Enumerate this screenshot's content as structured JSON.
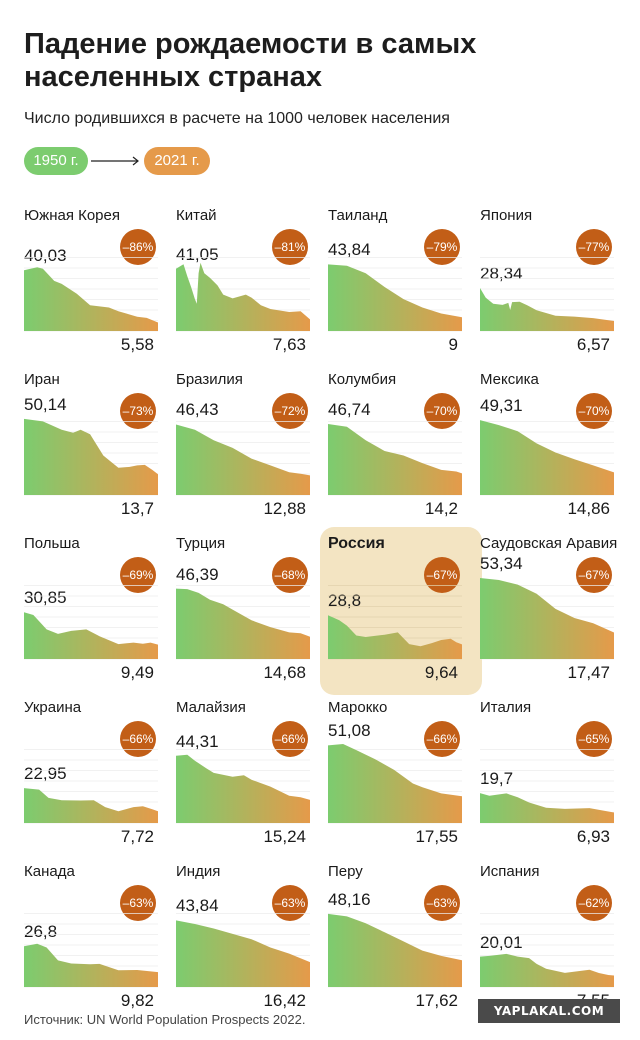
{
  "title": "Падение рождаемости в самых населенных странах",
  "subtitle": "Число родившихся в расчете на 1000 человек населения",
  "legend": {
    "start_label": "1950 г.",
    "end_label": "2021 г."
  },
  "source": "Источник: UN World Population Prospects 2022.",
  "watermark": "YAPLAKAL.COM",
  "colors": {
    "start_green": "#7ccc6f",
    "end_orange": "#e59a4a",
    "badge_brown": "#c25e17",
    "highlight_bg": "#f3e4c2"
  },
  "chart_data": {
    "type": "area",
    "x_range": [
      1950,
      2021
    ],
    "grid": true,
    "y_max_per_panel": 54,
    "panels": [
      {
        "country": "Южная Корея",
        "start": "40,03",
        "end": "5,58",
        "change": "–86%",
        "start_value": 40.03,
        "end_value": 5.58,
        "profile": [
          [
            1950,
            40.0
          ],
          [
            1957,
            42.0
          ],
          [
            1960,
            41.0
          ],
          [
            1966,
            33.0
          ],
          [
            1970,
            31.0
          ],
          [
            1978,
            24.5
          ],
          [
            1985,
            17.0
          ],
          [
            1995,
            15.5
          ],
          [
            2000,
            13.0
          ],
          [
            2010,
            9.4
          ],
          [
            2015,
            8.6
          ],
          [
            2021,
            5.58
          ]
        ]
      },
      {
        "country": "Китай",
        "start": "41,05",
        "end": "7,63",
        "change": "–81%",
        "start_value": 41.05,
        "end_value": 7.63,
        "profile": [
          [
            1950,
            41.05
          ],
          [
            1954,
            44.0
          ],
          [
            1956,
            36.0
          ],
          [
            1958,
            29.0
          ],
          [
            1960,
            21.0
          ],
          [
            1961,
            18.0
          ],
          [
            1962,
            38.0
          ],
          [
            1963,
            45.0
          ],
          [
            1965,
            38.0
          ],
          [
            1968,
            35.0
          ],
          [
            1972,
            30.0
          ],
          [
            1975,
            24.0
          ],
          [
            1980,
            21.5
          ],
          [
            1987,
            24.0
          ],
          [
            1990,
            22.0
          ],
          [
            1995,
            17.0
          ],
          [
            2000,
            14.5
          ],
          [
            2010,
            12.5
          ],
          [
            2016,
            13.0
          ],
          [
            2021,
            7.63
          ]
        ]
      },
      {
        "country": "Таиланд",
        "start": "43,84",
        "end": "9",
        "change": "–79%",
        "start_value": 43.84,
        "end_value": 9.0,
        "profile": [
          [
            1950,
            43.84
          ],
          [
            1960,
            43.0
          ],
          [
            1970,
            38.0
          ],
          [
            1980,
            29.0
          ],
          [
            1990,
            21.0
          ],
          [
            2000,
            15.5
          ],
          [
            2010,
            11.5
          ],
          [
            2021,
            9.0
          ]
        ]
      },
      {
        "country": "Япония",
        "start": "28,34",
        "end": "6,57",
        "change": "–77%",
        "start_value": 28.34,
        "end_value": 6.57,
        "profile": [
          [
            1950,
            28.34
          ],
          [
            1953,
            22.0
          ],
          [
            1957,
            18.0
          ],
          [
            1962,
            17.2
          ],
          [
            1965,
            18.5
          ],
          [
            1966,
            13.8
          ],
          [
            1967,
            19.0
          ],
          [
            1971,
            19.2
          ],
          [
            1975,
            17.0
          ],
          [
            1980,
            13.6
          ],
          [
            1990,
            10.0
          ],
          [
            2000,
            9.5
          ],
          [
            2010,
            8.5
          ],
          [
            2021,
            6.57
          ]
        ]
      },
      {
        "country": "Иран",
        "start": "50,14",
        "end": "13,7",
        "change": "–73%",
        "start_value": 50.14,
        "end_value": 13.7,
        "profile": [
          [
            1950,
            50.14
          ],
          [
            1960,
            48.5
          ],
          [
            1970,
            43.0
          ],
          [
            1976,
            41.0
          ],
          [
            1980,
            43.0
          ],
          [
            1985,
            40.0
          ],
          [
            1992,
            26.0
          ],
          [
            1996,
            22.0
          ],
          [
            2000,
            18.0
          ],
          [
            2006,
            18.5
          ],
          [
            2010,
            19.5
          ],
          [
            2014,
            19.8
          ],
          [
            2018,
            16.5
          ],
          [
            2021,
            13.7
          ]
        ]
      },
      {
        "country": "Бразилия",
        "start": "46,43",
        "end": "12,88",
        "change": "–72%",
        "start_value": 46.43,
        "end_value": 12.88,
        "profile": [
          [
            1950,
            46.43
          ],
          [
            1960,
            43.0
          ],
          [
            1970,
            36.0
          ],
          [
            1980,
            31.0
          ],
          [
            1990,
            24.0
          ],
          [
            2000,
            19.5
          ],
          [
            2010,
            15.0
          ],
          [
            2016,
            14.0
          ],
          [
            2021,
            12.88
          ]
        ]
      },
      {
        "country": "Колумбия",
        "start": "46,74",
        "end": "14,2",
        "change": "–70%",
        "start_value": 46.74,
        "end_value": 14.2,
        "profile": [
          [
            1950,
            46.74
          ],
          [
            1960,
            45.0
          ],
          [
            1970,
            36.0
          ],
          [
            1980,
            29.0
          ],
          [
            1990,
            26.0
          ],
          [
            2000,
            21.0
          ],
          [
            2010,
            16.5
          ],
          [
            2018,
            15.5
          ],
          [
            2021,
            14.2
          ]
        ]
      },
      {
        "country": "Мексика",
        "start": "49,31",
        "end": "14,86",
        "change": "–70%",
        "start_value": 49.31,
        "end_value": 14.86,
        "profile": [
          [
            1950,
            49.31
          ],
          [
            1960,
            46.0
          ],
          [
            1970,
            42.0
          ],
          [
            1980,
            34.0
          ],
          [
            1990,
            28.0
          ],
          [
            2000,
            23.5
          ],
          [
            2010,
            19.5
          ],
          [
            2021,
            14.86
          ]
        ]
      },
      {
        "country": "Польша",
        "start": "30,85",
        "end": "9,49",
        "change": "–69%",
        "start_value": 30.85,
        "end_value": 9.49,
        "profile": [
          [
            1950,
            30.85
          ],
          [
            1955,
            29.0
          ],
          [
            1962,
            19.5
          ],
          [
            1968,
            16.5
          ],
          [
            1975,
            18.5
          ],
          [
            1983,
            19.5
          ],
          [
            1990,
            15.0
          ],
          [
            2000,
            9.8
          ],
          [
            2008,
            10.8
          ],
          [
            2013,
            10.0
          ],
          [
            2017,
            10.8
          ],
          [
            2021,
            9.49
          ]
        ]
      },
      {
        "country": "Турция",
        "start": "46,39",
        "end": "14,68",
        "change": "–68%",
        "start_value": 46.39,
        "end_value": 14.68,
        "profile": [
          [
            1950,
            46.39
          ],
          [
            1956,
            46.0
          ],
          [
            1962,
            43.5
          ],
          [
            1968,
            39.0
          ],
          [
            1975,
            36.0
          ],
          [
            1980,
            32.5
          ],
          [
            1990,
            25.5
          ],
          [
            2000,
            21.0
          ],
          [
            2010,
            17.5
          ],
          [
            2016,
            17.0
          ],
          [
            2021,
            14.68
          ]
        ]
      },
      {
        "country": "Россия",
        "start": "28,8",
        "end": "9,64",
        "change": "–67%",
        "start_value": 28.8,
        "end_value": 9.64,
        "highlighted": true,
        "profile": [
          [
            1950,
            28.8
          ],
          [
            1956,
            25.5
          ],
          [
            1960,
            22.0
          ],
          [
            1965,
            15.5
          ],
          [
            1970,
            14.5
          ],
          [
            1980,
            16.0
          ],
          [
            1987,
            17.5
          ],
          [
            1993,
            9.8
          ],
          [
            1999,
            8.4
          ],
          [
            2005,
            10.5
          ],
          [
            2010,
            12.5
          ],
          [
            2015,
            13.3
          ],
          [
            2018,
            11.0
          ],
          [
            2021,
            9.64
          ]
        ]
      },
      {
        "country": "Саудовская Аравия",
        "start": "53,34",
        "end": "17,47",
        "change": "–67%",
        "start_value": 53.34,
        "end_value": 17.47,
        "profile": [
          [
            1950,
            53.34
          ],
          [
            1960,
            52.0
          ],
          [
            1970,
            49.0
          ],
          [
            1980,
            43.0
          ],
          [
            1990,
            33.0
          ],
          [
            2000,
            27.0
          ],
          [
            2010,
            23.5
          ],
          [
            2021,
            17.47
          ]
        ]
      },
      {
        "country": "Украина",
        "start": "22,95",
        "end": "7,72",
        "change": "–66%",
        "start_value": 22.95,
        "end_value": 7.72,
        "profile": [
          [
            1950,
            22.95
          ],
          [
            1958,
            22.0
          ],
          [
            1963,
            16.5
          ],
          [
            1970,
            15.0
          ],
          [
            1980,
            14.8
          ],
          [
            1987,
            15.0
          ],
          [
            1993,
            10.5
          ],
          [
            2000,
            7.8
          ],
          [
            2008,
            10.5
          ],
          [
            2013,
            11.0
          ],
          [
            2018,
            9.0
          ],
          [
            2021,
            7.72
          ]
        ]
      },
      {
        "country": "Малайзия",
        "start": "44,31",
        "end": "15,24",
        "change": "–66%",
        "start_value": 44.31,
        "end_value": 15.24,
        "profile": [
          [
            1950,
            44.31
          ],
          [
            1956,
            45.0
          ],
          [
            1960,
            41.0
          ],
          [
            1966,
            36.0
          ],
          [
            1970,
            33.0
          ],
          [
            1980,
            30.5
          ],
          [
            1986,
            31.5
          ],
          [
            1990,
            28.5
          ],
          [
            2000,
            24.0
          ],
          [
            2010,
            18.0
          ],
          [
            2016,
            17.0
          ],
          [
            2021,
            15.24
          ]
        ]
      },
      {
        "country": "Марокко",
        "start": "51,08",
        "end": "17,55",
        "change": "–66%",
        "start_value": 51.08,
        "end_value": 17.55,
        "profile": [
          [
            1950,
            51.08
          ],
          [
            1958,
            52.0
          ],
          [
            1965,
            48.0
          ],
          [
            1975,
            42.0
          ],
          [
            1985,
            35.0
          ],
          [
            1995,
            26.0
          ],
          [
            2000,
            23.5
          ],
          [
            2010,
            19.5
          ],
          [
            2021,
            17.55
          ]
        ]
      },
      {
        "country": "Италия",
        "start": "19,7",
        "end": "6,93",
        "change": "–65%",
        "start_value": 19.7,
        "end_value": 6.93,
        "profile": [
          [
            1950,
            19.7
          ],
          [
            1955,
            18.0
          ],
          [
            1964,
            19.5
          ],
          [
            1970,
            17.0
          ],
          [
            1976,
            13.5
          ],
          [
            1985,
            10.0
          ],
          [
            1995,
            9.3
          ],
          [
            2008,
            9.8
          ],
          [
            2015,
            8.2
          ],
          [
            2021,
            6.93
          ]
        ]
      },
      {
        "country": "Канада",
        "start": "26,8",
        "end": "9,82",
        "change": "–63%",
        "start_value": 26.8,
        "end_value": 9.82,
        "profile": [
          [
            1950,
            26.8
          ],
          [
            1957,
            28.5
          ],
          [
            1962,
            26.0
          ],
          [
            1968,
            17.5
          ],
          [
            1975,
            15.5
          ],
          [
            1985,
            15.0
          ],
          [
            1990,
            15.2
          ],
          [
            2000,
            11.0
          ],
          [
            2010,
            11.2
          ],
          [
            2021,
            9.82
          ]
        ]
      },
      {
        "country": "Индия",
        "start": "43,84",
        "end": "16,42",
        "change": "–63%",
        "start_value": 43.84,
        "end_value": 16.42,
        "profile": [
          [
            1950,
            43.84
          ],
          [
            1960,
            41.5
          ],
          [
            1970,
            38.5
          ],
          [
            1980,
            35.0
          ],
          [
            1990,
            31.5
          ],
          [
            2000,
            26.0
          ],
          [
            2010,
            22.0
          ],
          [
            2021,
            16.42
          ]
        ]
      },
      {
        "country": "Перу",
        "start": "48,16",
        "end": "17,62",
        "change": "–63%",
        "start_value": 48.16,
        "end_value": 17.62,
        "profile": [
          [
            1950,
            48.16
          ],
          [
            1960,
            46.5
          ],
          [
            1970,
            42.0
          ],
          [
            1980,
            36.0
          ],
          [
            1990,
            30.0
          ],
          [
            2000,
            24.0
          ],
          [
            2010,
            20.5
          ],
          [
            2021,
            17.62
          ]
        ]
      },
      {
        "country": "Испания",
        "start": "20,01",
        "end": "7,55",
        "change": "–62%",
        "start_value": 20.01,
        "end_value": 7.55,
        "profile": [
          [
            1950,
            20.01
          ],
          [
            1955,
            20.5
          ],
          [
            1964,
            21.8
          ],
          [
            1970,
            20.0
          ],
          [
            1976,
            19.0
          ],
          [
            1980,
            15.2
          ],
          [
            1985,
            12.0
          ],
          [
            1995,
            9.3
          ],
          [
            2008,
            11.3
          ],
          [
            2013,
            9.2
          ],
          [
            2018,
            7.9
          ],
          [
            2021,
            7.55
          ]
        ]
      }
    ]
  }
}
